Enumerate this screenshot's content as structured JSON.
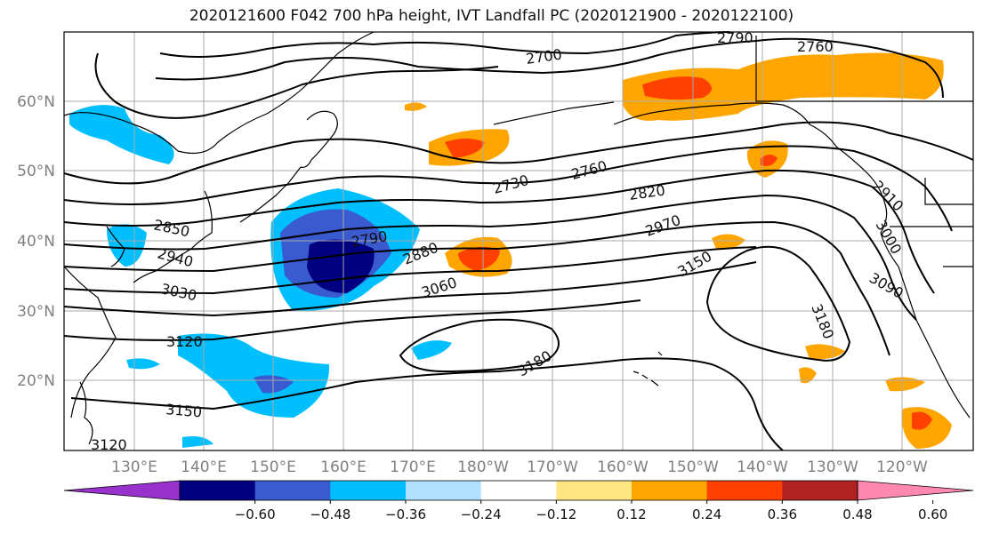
{
  "title": "2020121600 F042 700 hPa height, IVT Landfall PC (2020121900 - 2020122100)",
  "lat_labels": [
    "60°N",
    "50°N",
    "40°N",
    "30°N",
    "20°N"
  ],
  "lon_labels": [
    "130°E",
    "140°E",
    "150°E",
    "160°E",
    "170°E",
    "180°W",
    "170°W",
    "160°W",
    "150°W",
    "140°W",
    "130°W",
    "120°W"
  ],
  "contour_labels": [
    "2700",
    "2760",
    "2790",
    "2730",
    "2760",
    "2820",
    "2850",
    "2910",
    "2940",
    "2790",
    "2880",
    "2970",
    "3000",
    "3030",
    "3060",
    "3150",
    "3090",
    "3180",
    "3120",
    "3180",
    "3150",
    "3120"
  ],
  "colorbar": {
    "ticks": [
      "−0.60",
      "−0.48",
      "−0.36",
      "−0.24",
      "−0.12",
      "0.12",
      "0.24",
      "0.36",
      "0.48",
      "0.60"
    ],
    "colors": [
      "#9932cc",
      "#000080",
      "#3a5bcf",
      "#00bfff",
      "#b0e0ff",
      "#ffffff",
      "#ffe680",
      "#ffa500",
      "#ff4000",
      "#b22222",
      "#ff88b0"
    ]
  },
  "ivt_colors": {
    "neg_very_strong": "#000080",
    "neg_strong": "#3a5bcf",
    "neg_moderate": "#00bfff",
    "neg_weak": "#b0e0ff",
    "pos_weak": "#ffe680",
    "pos_moderate": "#ffa500",
    "pos_strong": "#ff4000"
  }
}
